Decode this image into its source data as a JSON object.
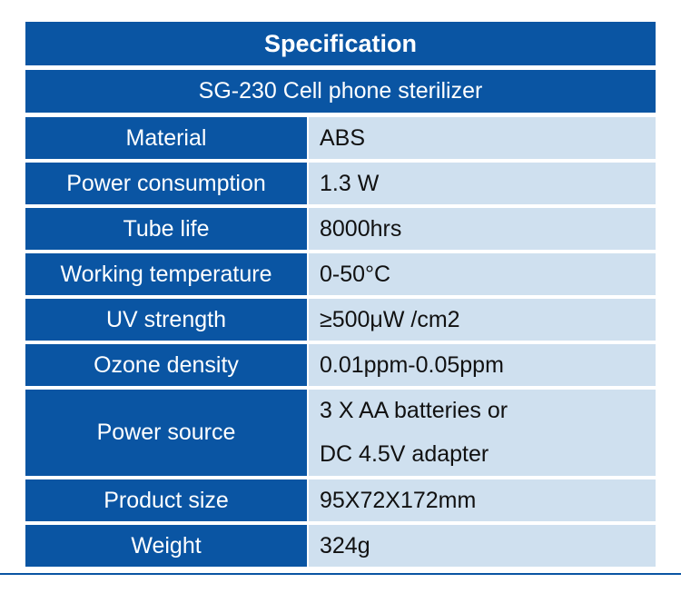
{
  "header": {
    "title": "Specification",
    "subtitle": "SG-230 Cell phone sterilizer"
  },
  "table": {
    "rows": [
      [
        "Material",
        [
          "ABS"
        ]
      ],
      [
        "Power consumption",
        [
          "1.3 W"
        ]
      ],
      [
        "Tube life",
        [
          "8000hrs"
        ]
      ],
      [
        "Working temperature",
        [
          "0-50°C"
        ]
      ],
      [
        "UV strength",
        [
          "≥500μW /cm2"
        ]
      ],
      [
        "Ozone density",
        [
          "0.01ppm-0.05ppm"
        ]
      ],
      [
        "Power source",
        [
          "3 X AA batteries or",
          "DC 4.5V adapter"
        ]
      ],
      [
        "Product size",
        [
          "95X72X172mm"
        ]
      ],
      [
        "Weight",
        [
          "324g"
        ]
      ]
    ]
  }
}
